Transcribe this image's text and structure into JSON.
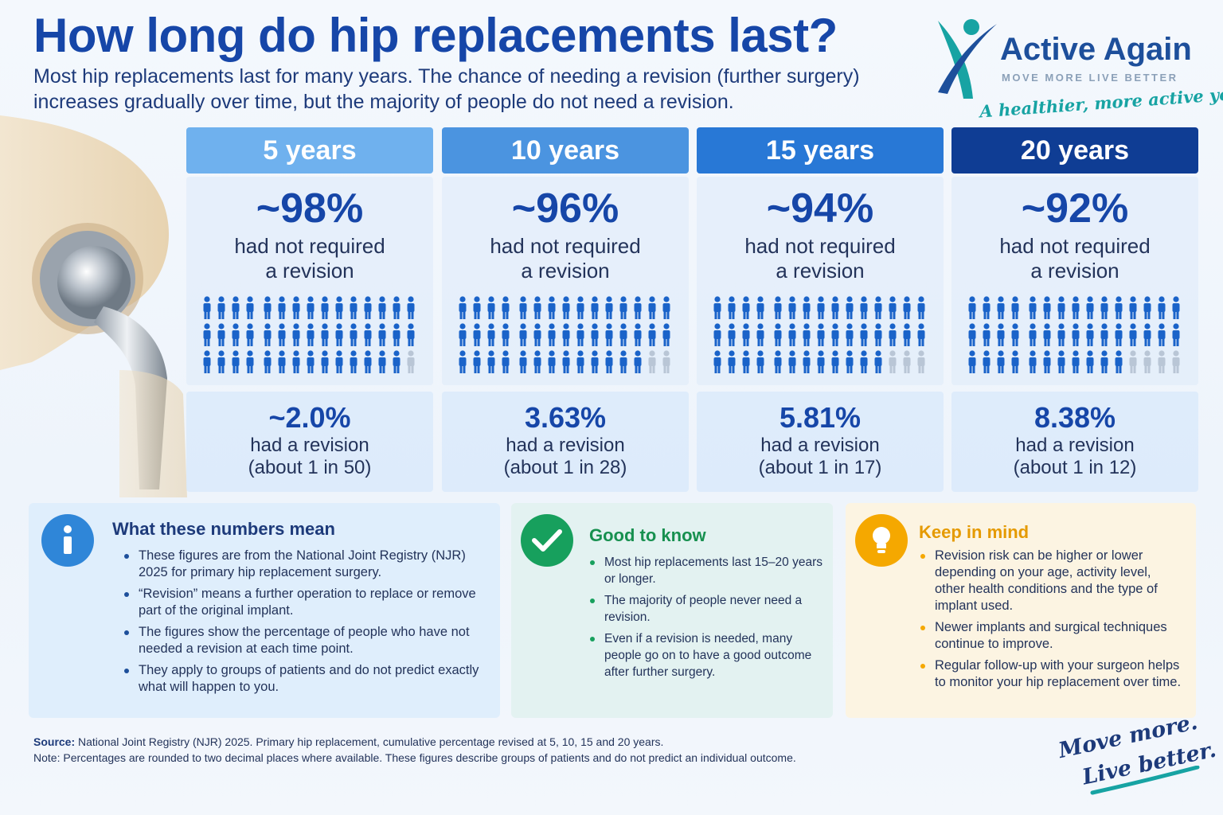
{
  "header": {
    "title": "How long do hip replacements last?",
    "subtitle": "Most hip replacements last for many years. The chance of needing a revision (further surgery) increases gradually over time, but the majority of people do not need a revision."
  },
  "brand": {
    "name": "Active Again",
    "tagline": "MOVE MORE  LIVE BETTER",
    "slogan": "A healthier, more active you",
    "colors": {
      "primary": "#1d4f9b",
      "teal": "#17a3a3"
    }
  },
  "periods": [
    {
      "label": "5 years",
      "color": "#6fb1ee",
      "not_revised": "~98%",
      "not_revised_label_1": "had not required",
      "not_revised_label_2": "a revision",
      "people_fraction": 0.98,
      "revised": "~2.0%",
      "revised_label": "had a revision",
      "ratio": "(about 1 in 50)"
    },
    {
      "label": "10 years",
      "color": "#4b94e0",
      "not_revised": "~96%",
      "not_revised_label_1": "had not required",
      "not_revised_label_2": "a revision",
      "people_fraction": 0.96,
      "revised": "3.63%",
      "revised_label": "had a revision",
      "ratio": "(about 1 in 28)"
    },
    {
      "label": "15 years",
      "color": "#2878d6",
      "not_revised": "~94%",
      "not_revised_label_1": "had not required",
      "not_revised_label_2": "a revision",
      "people_fraction": 0.94,
      "revised": "5.81%",
      "revised_label": "had a revision",
      "ratio": "(about 1 in 17)"
    },
    {
      "label": "20 years",
      "color": "#0f3d94",
      "not_revised": "~92%",
      "not_revised_label_1": "had not required",
      "not_revised_label_2": "a revision",
      "people_fraction": 0.92,
      "revised": "8.38%",
      "revised_label": "had a revision",
      "ratio": "(about 1 in 12)"
    }
  ],
  "panels": {
    "meaning": {
      "icon": "info-icon",
      "title": "What these numbers mean",
      "items": [
        "These figures are from the National Joint Registry (NJR) 2025 for primary hip replacement surgery.",
        "“Revision” means a further operation to replace or remove part of the original implant.",
        "The figures show the percentage of people who have not needed a revision at each time point.",
        "They apply to groups of patients and do not predict exactly what will happen to you."
      ]
    },
    "good": {
      "icon": "checkmark-icon",
      "title": "Good to know",
      "items": [
        "Most hip replacements last 15–20 years or longer.",
        "The majority of people never need a revision.",
        "Even if a revision is needed, many people go on to have a good outcome after further surgery."
      ]
    },
    "mind": {
      "icon": "lightbulb-icon",
      "title": "Keep in mind",
      "items": [
        "Revision risk can be higher or lower depending on your age, activity level, other health conditions and the type of implant used.",
        "Newer implants and surgical techniques continue to improve.",
        "Regular follow-up with your surgeon helps to monitor your hip replacement over time."
      ]
    }
  },
  "footer": {
    "source_label": "Source:",
    "source_text": "National Joint Registry (NJR) 2025. Primary hip replacement, cumulative percentage revised at 5, 10, 15 and 20 years.",
    "note": "Note: Percentages are rounded to two decimal places where available. These figures describe groups of patients and do not predict an individual outcome.",
    "slogan_1": "Move more.",
    "slogan_2": "Live better."
  }
}
